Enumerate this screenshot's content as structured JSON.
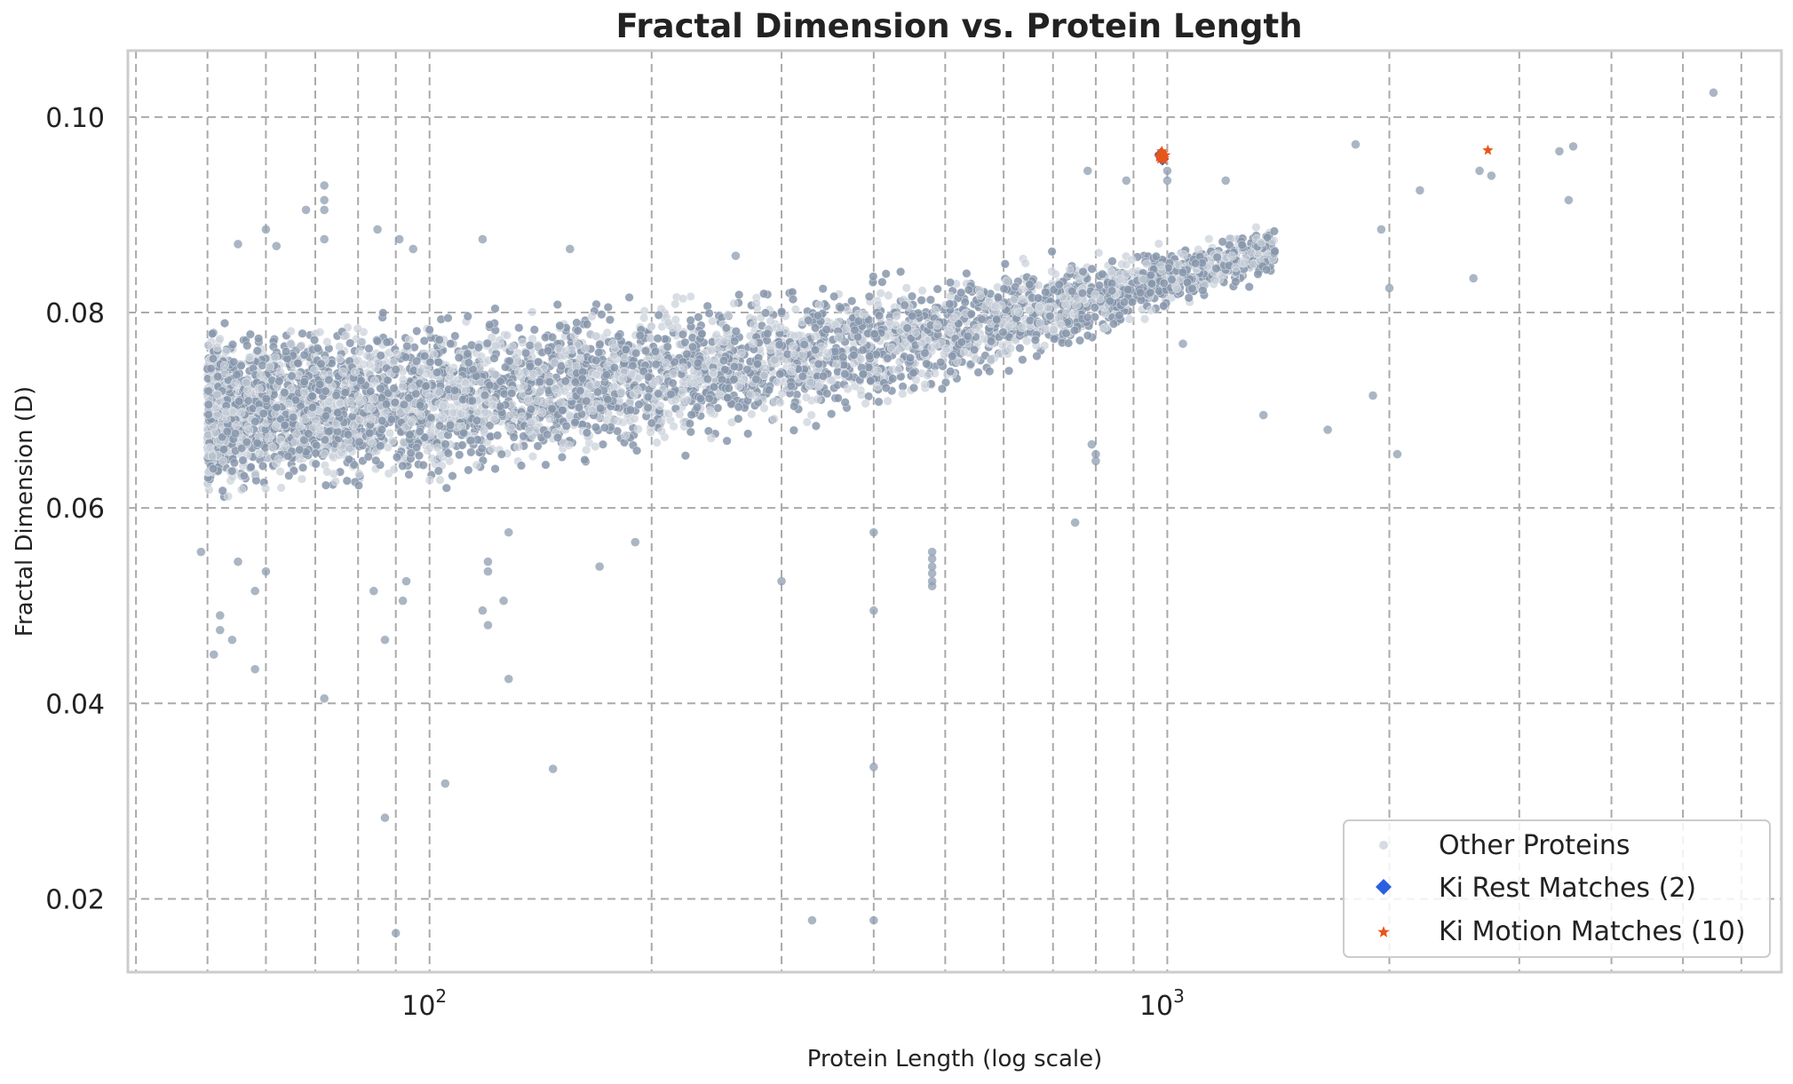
{
  "chart_data": {
    "type": "scatter",
    "title": "Fractal Dimension vs. Protein Length",
    "xlabel": "Protein Length (log scale)",
    "ylabel": "Fractal Dimension (D)",
    "xscale": "log",
    "xlim": [
      39,
      6800
    ],
    "ylim": [
      0.0125,
      0.1068
    ],
    "xticks": [
      {
        "value": 100,
        "base": "10",
        "exp": "2"
      },
      {
        "value": 1000,
        "base": "10",
        "exp": "3"
      }
    ],
    "yticks": [
      {
        "value": 0.02,
        "label": "0.02"
      },
      {
        "value": 0.04,
        "label": "0.04"
      },
      {
        "value": 0.06,
        "label": "0.06"
      },
      {
        "value": 0.08,
        "label": "0.08"
      },
      {
        "value": 0.1,
        "label": "0.10"
      }
    ],
    "grid": true,
    "legend_position": "bottom-right",
    "series": [
      {
        "name": "Other Proteins",
        "color": "#8a9ab0",
        "marker": "circle",
        "trend": {
          "x": [
            50,
            100,
            200,
            400,
            800,
            1000,
            1500,
            3000
          ],
          "y": [
            0.0695,
            0.071,
            0.0735,
            0.0765,
            0.0815,
            0.0835,
            0.087,
            0.093
          ]
        },
        "spread": [
          0.006,
          0.0058,
          0.0055,
          0.0048,
          0.0032,
          0.0025,
          0.0018,
          0.0015
        ],
        "outliers": [
          {
            "x": 5500,
            "y": 0.1025
          },
          {
            "x": 3550,
            "y": 0.097
          },
          {
            "x": 3400,
            "y": 0.0965
          },
          {
            "x": 3500,
            "y": 0.0915
          },
          {
            "x": 2650,
            "y": 0.0945
          },
          {
            "x": 2750,
            "y": 0.094
          },
          {
            "x": 2600,
            "y": 0.0835
          },
          {
            "x": 2200,
            "y": 0.0925
          },
          {
            "x": 1800,
            "y": 0.0972
          },
          {
            "x": 1950,
            "y": 0.0885
          },
          {
            "x": 2000,
            "y": 0.0825
          },
          {
            "x": 2050,
            "y": 0.0655
          },
          {
            "x": 1900,
            "y": 0.0715
          },
          {
            "x": 1350,
            "y": 0.0695
          },
          {
            "x": 1650,
            "y": 0.068
          },
          {
            "x": 1200,
            "y": 0.0935
          },
          {
            "x": 1000,
            "y": 0.0945
          },
          {
            "x": 1000,
            "y": 0.0935
          },
          {
            "x": 780,
            "y": 0.0945
          },
          {
            "x": 880,
            "y": 0.0935
          },
          {
            "x": 1050,
            "y": 0.0768
          },
          {
            "x": 750,
            "y": 0.0585
          },
          {
            "x": 800,
            "y": 0.0655
          },
          {
            "x": 800,
            "y": 0.0648
          },
          {
            "x": 790,
            "y": 0.0665
          },
          {
            "x": 480,
            "y": 0.0555
          },
          {
            "x": 480,
            "y": 0.054
          },
          {
            "x": 480,
            "y": 0.0525
          },
          {
            "x": 480,
            "y": 0.052
          },
          {
            "x": 480,
            "y": 0.0533
          },
          {
            "x": 480,
            "y": 0.0548
          },
          {
            "x": 400,
            "y": 0.0575
          },
          {
            "x": 400,
            "y": 0.0495
          },
          {
            "x": 400,
            "y": 0.0335
          },
          {
            "x": 400,
            "y": 0.0178
          },
          {
            "x": 330,
            "y": 0.0178
          },
          {
            "x": 300,
            "y": 0.0525
          },
          {
            "x": 170,
            "y": 0.054
          },
          {
            "x": 190,
            "y": 0.0565
          },
          {
            "x": 147,
            "y": 0.0333
          },
          {
            "x": 128,
            "y": 0.0425
          },
          {
            "x": 120,
            "y": 0.0545
          },
          {
            "x": 120,
            "y": 0.0535
          },
          {
            "x": 118,
            "y": 0.0495
          },
          {
            "x": 120,
            "y": 0.048
          },
          {
            "x": 126,
            "y": 0.0505
          },
          {
            "x": 128,
            "y": 0.0575
          },
          {
            "x": 105,
            "y": 0.0318
          },
          {
            "x": 92,
            "y": 0.0505
          },
          {
            "x": 93,
            "y": 0.0525
          },
          {
            "x": 87,
            "y": 0.0465
          },
          {
            "x": 87,
            "y": 0.0283
          },
          {
            "x": 90,
            "y": 0.0165
          },
          {
            "x": 84,
            "y": 0.0515
          },
          {
            "x": 72,
            "y": 0.0405
          },
          {
            "x": 58,
            "y": 0.0435
          },
          {
            "x": 51,
            "y": 0.045
          },
          {
            "x": 52,
            "y": 0.0475
          },
          {
            "x": 54,
            "y": 0.0465
          },
          {
            "x": 52,
            "y": 0.049
          },
          {
            "x": 58,
            "y": 0.0515
          },
          {
            "x": 55,
            "y": 0.0545
          },
          {
            "x": 49,
            "y": 0.0555
          },
          {
            "x": 60,
            "y": 0.0535
          },
          {
            "x": 72,
            "y": 0.093
          },
          {
            "x": 72,
            "y": 0.0915
          },
          {
            "x": 72,
            "y": 0.0905
          },
          {
            "x": 68,
            "y": 0.0905
          },
          {
            "x": 72,
            "y": 0.0875
          },
          {
            "x": 85,
            "y": 0.0885
          },
          {
            "x": 91,
            "y": 0.0875
          },
          {
            "x": 95,
            "y": 0.0865
          },
          {
            "x": 118,
            "y": 0.0875
          },
          {
            "x": 55,
            "y": 0.087
          },
          {
            "x": 60,
            "y": 0.0885
          },
          {
            "x": 62,
            "y": 0.0868
          },
          {
            "x": 155,
            "y": 0.0865
          },
          {
            "x": 260,
            "y": 0.0858
          }
        ]
      },
      {
        "name": "Ki Rest Matches (2)",
        "color": "#2b5fe0",
        "marker": "diamond",
        "points": [
          {
            "x": 980,
            "y": 0.0962
          },
          {
            "x": 985,
            "y": 0.0957
          }
        ]
      },
      {
        "name": "Ki Motion Matches (10)",
        "color": "#e8551a",
        "marker": "star",
        "points": [
          {
            "x": 978,
            "y": 0.0962
          },
          {
            "x": 982,
            "y": 0.096
          },
          {
            "x": 986,
            "y": 0.0963
          },
          {
            "x": 990,
            "y": 0.0958
          },
          {
            "x": 975,
            "y": 0.0959
          },
          {
            "x": 994,
            "y": 0.0961
          },
          {
            "x": 983,
            "y": 0.0965
          },
          {
            "x": 988,
            "y": 0.0956
          },
          {
            "x": 979,
            "y": 0.0957
          },
          {
            "x": 2720,
            "y": 0.0966
          }
        ]
      }
    ]
  }
}
